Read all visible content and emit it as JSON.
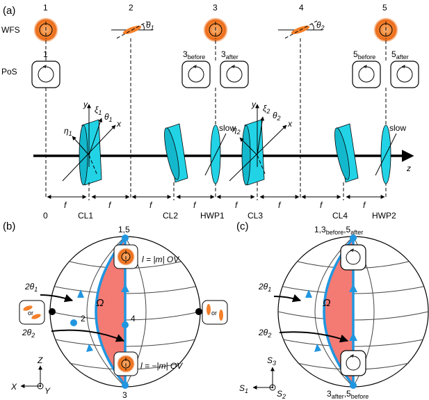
{
  "panels": {
    "a": "(a)",
    "b": "(b)",
    "c": "(c)"
  },
  "row_labels": {
    "wfs": "WFS",
    "pos": "PoS"
  },
  "positions": [
    "1",
    "2",
    "3",
    "4",
    "5"
  ],
  "pos_labels": {
    "one": "1",
    "three_before": "3",
    "three_after": "3",
    "five_before": "5",
    "five_after": "5",
    "before": "before",
    "after": "after"
  },
  "angles": {
    "theta1": "θ",
    "theta2": "θ",
    "sub1": "1",
    "sub2": "2"
  },
  "axes_a": {
    "x": "x",
    "y": "y",
    "z": "z",
    "xi": "ξ",
    "eta": "η"
  },
  "slow": "slow",
  "bottom": {
    "zero": "0",
    "f": "f",
    "elements": [
      "CL1",
      "CL2",
      "HWP1",
      "CL3",
      "CL4",
      "HWP2"
    ]
  },
  "sphere_b": {
    "top": "1,5",
    "bottom": "3",
    "middle": "4",
    "left_pt": "2",
    "omega": "Ω",
    "two_theta": "2θ",
    "ov_top": "l = |m| OV",
    "ov_bottom": "l = −|m| OV",
    "or": "or",
    "Z": "Z",
    "X": "X",
    "Y": "Y"
  },
  "sphere_c": {
    "top": "1,3",
    "top_tail": ",5",
    "bottom": "3",
    "bottom_tail": ",5",
    "before": "before",
    "after": "after",
    "omega": "Ω",
    "two_theta": "2θ",
    "S1": "S",
    "S2": "S",
    "S3": "S",
    "s_sub1": "1",
    "s_sub2": "2",
    "s_sub3": "3"
  },
  "colors": {
    "beam_orange": "#f4802a",
    "lens_cyan": "#22d3e6",
    "path_blue": "#2196e0",
    "omega_red": "#f47a74"
  }
}
